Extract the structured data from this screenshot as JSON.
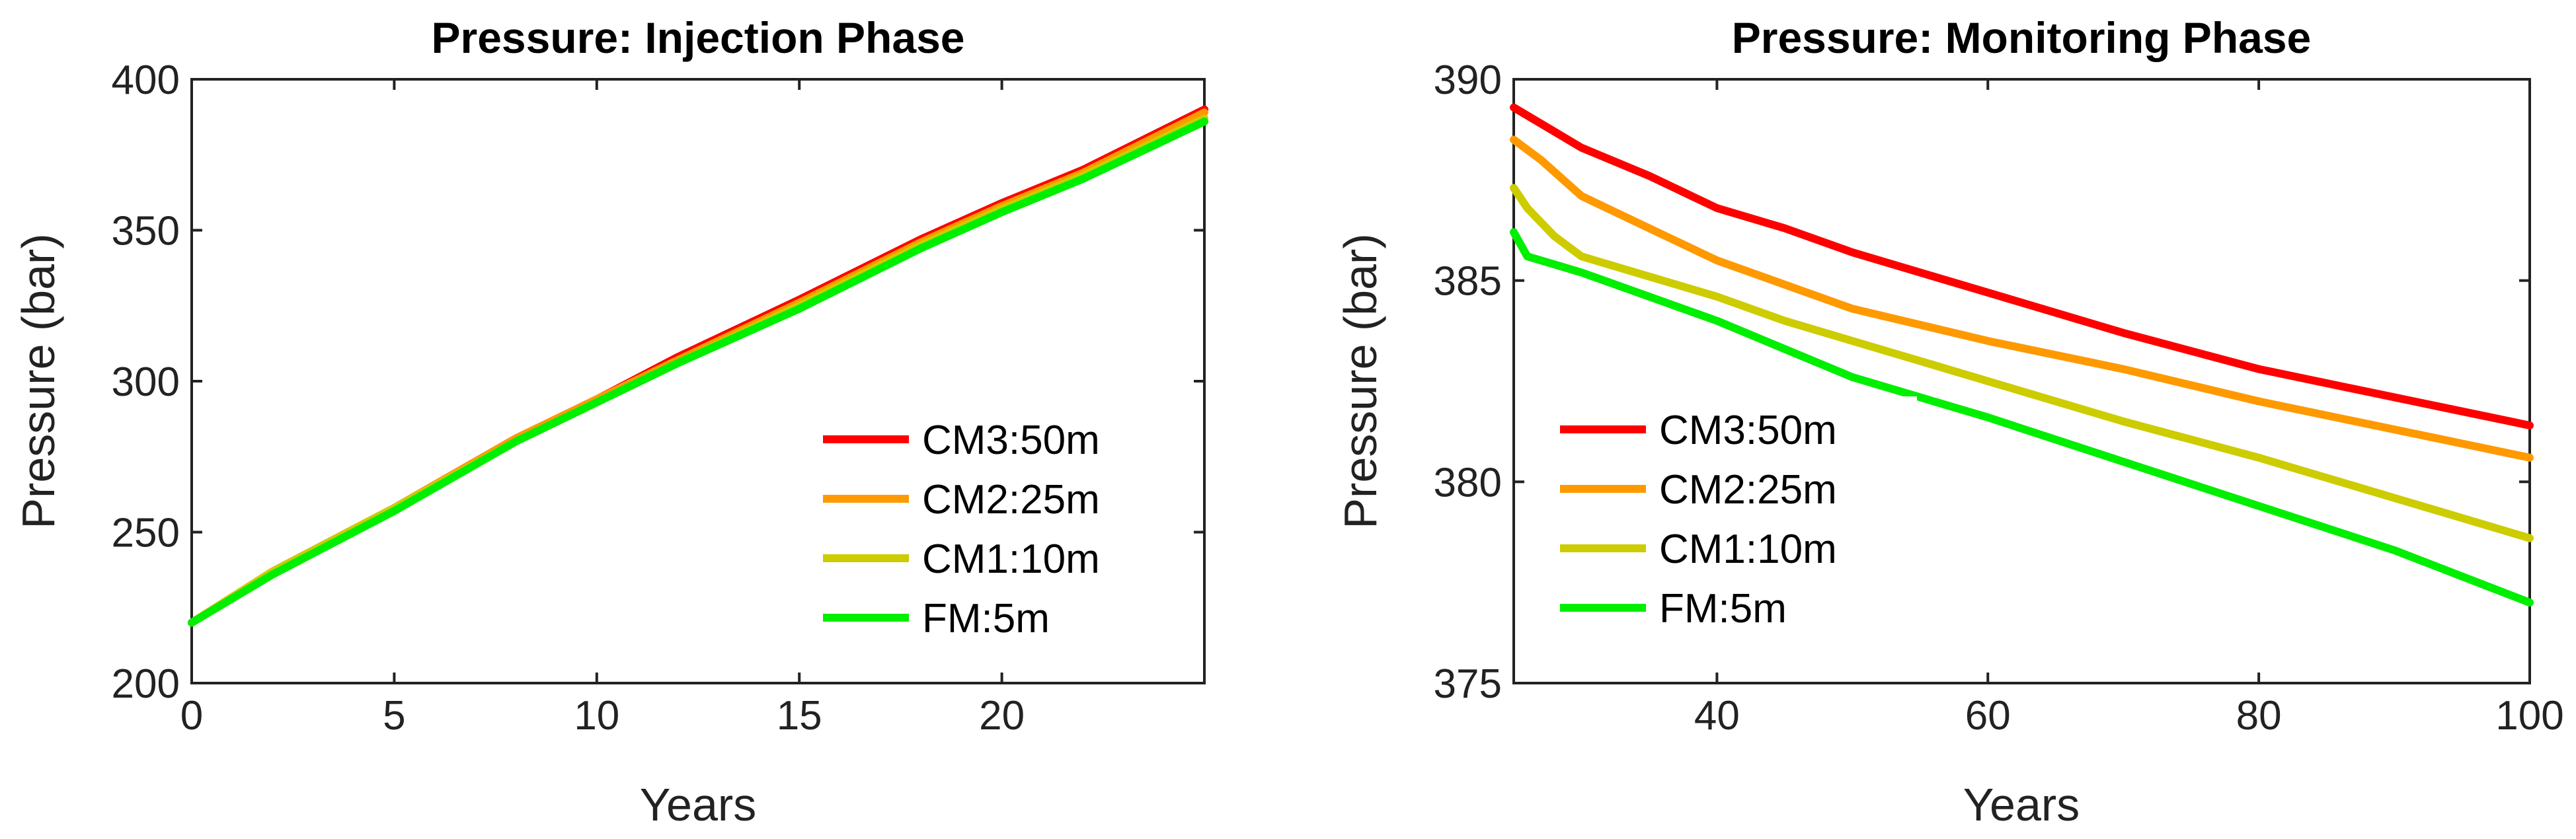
{
  "chart_data": [
    {
      "type": "line",
      "title": "Pressure: Injection Phase",
      "xlabel": "Years",
      "ylabel": "Pressure (bar)",
      "xlim": [
        0,
        25
      ],
      "ylim": [
        200,
        400
      ],
      "xticks": [
        0,
        5,
        10,
        15,
        20
      ],
      "yticks": [
        200,
        250,
        300,
        350,
        400
      ],
      "legend_position": "bottom-right",
      "series": [
        {
          "name": "CM3:50m",
          "color": "#ff0000",
          "x": [
            0,
            2,
            5,
            8,
            10,
            12,
            15,
            18,
            20,
            22,
            25
          ],
          "y": [
            220,
            237,
            258,
            281,
            294,
            308,
            327,
            347,
            359,
            370,
            390
          ]
        },
        {
          "name": "CM2:25m",
          "color": "#ff9900",
          "x": [
            0,
            2,
            5,
            8,
            10,
            12,
            15,
            18,
            20,
            22,
            25
          ],
          "y": [
            220,
            237,
            258,
            281,
            294,
            307,
            326,
            346,
            358,
            369,
            389
          ]
        },
        {
          "name": "CM1:10m",
          "color": "#cccc00",
          "x": [
            0,
            2,
            5,
            8,
            10,
            12,
            15,
            18,
            20,
            22,
            25
          ],
          "y": [
            220,
            237,
            258,
            280,
            293,
            306,
            325,
            345,
            357,
            368,
            387
          ]
        },
        {
          "name": "FM:5m",
          "color": "#00ee00",
          "x": [
            0,
            2,
            5,
            8,
            10,
            12,
            15,
            18,
            20,
            22,
            25
          ],
          "y": [
            220,
            236,
            257,
            280,
            293,
            306,
            324,
            344,
            356,
            367,
            386
          ]
        }
      ]
    },
    {
      "type": "line",
      "title": "Pressure: Monitoring Phase",
      "xlabel": "Years",
      "ylabel": "Pressure (bar)",
      "xlim": [
        25,
        100
      ],
      "ylim": [
        375,
        390
      ],
      "xticks": [
        40,
        60,
        80,
        100
      ],
      "yticks": [
        375,
        380,
        385,
        390
      ],
      "legend_position": "bottom-left",
      "series": [
        {
          "name": "CM3:50m",
          "color": "#ff0000",
          "x": [
            25,
            28,
            30,
            35,
            40,
            45,
            50,
            55,
            60,
            70,
            80,
            90,
            100
          ],
          "y": [
            389.3,
            388.7,
            388.3,
            387.6,
            386.8,
            386.3,
            385.7,
            385.2,
            384.7,
            383.7,
            382.8,
            382.1,
            381.4
          ]
        },
        {
          "name": "CM2:25m",
          "color": "#ff9900",
          "x": [
            25,
            27,
            30,
            35,
            40,
            45,
            50,
            55,
            60,
            70,
            80,
            90,
            100
          ],
          "y": [
            388.5,
            388.0,
            387.1,
            386.3,
            385.5,
            384.9,
            384.3,
            383.9,
            383.5,
            382.8,
            382.0,
            381.3,
            380.6
          ]
        },
        {
          "name": "CM1:10m",
          "color": "#cccc00",
          "x": [
            25,
            26,
            28,
            30,
            35,
            40,
            45,
            50,
            55,
            60,
            70,
            80,
            90,
            100
          ],
          "y": [
            387.3,
            386.8,
            386.1,
            385.6,
            385.1,
            384.6,
            384.0,
            383.5,
            383.0,
            382.5,
            381.5,
            380.6,
            379.6,
            378.6
          ]
        },
        {
          "name": "FM:5m",
          "color": "#00ee00",
          "x": [
            25,
            26,
            28,
            30,
            35,
            40,
            45,
            50,
            55,
            60,
            70,
            80,
            90,
            100
          ],
          "y": [
            386.2,
            385.6,
            385.4,
            385.2,
            384.6,
            384.0,
            383.3,
            382.6,
            382.1,
            381.6,
            380.5,
            379.4,
            378.3,
            377.0
          ]
        }
      ]
    }
  ]
}
